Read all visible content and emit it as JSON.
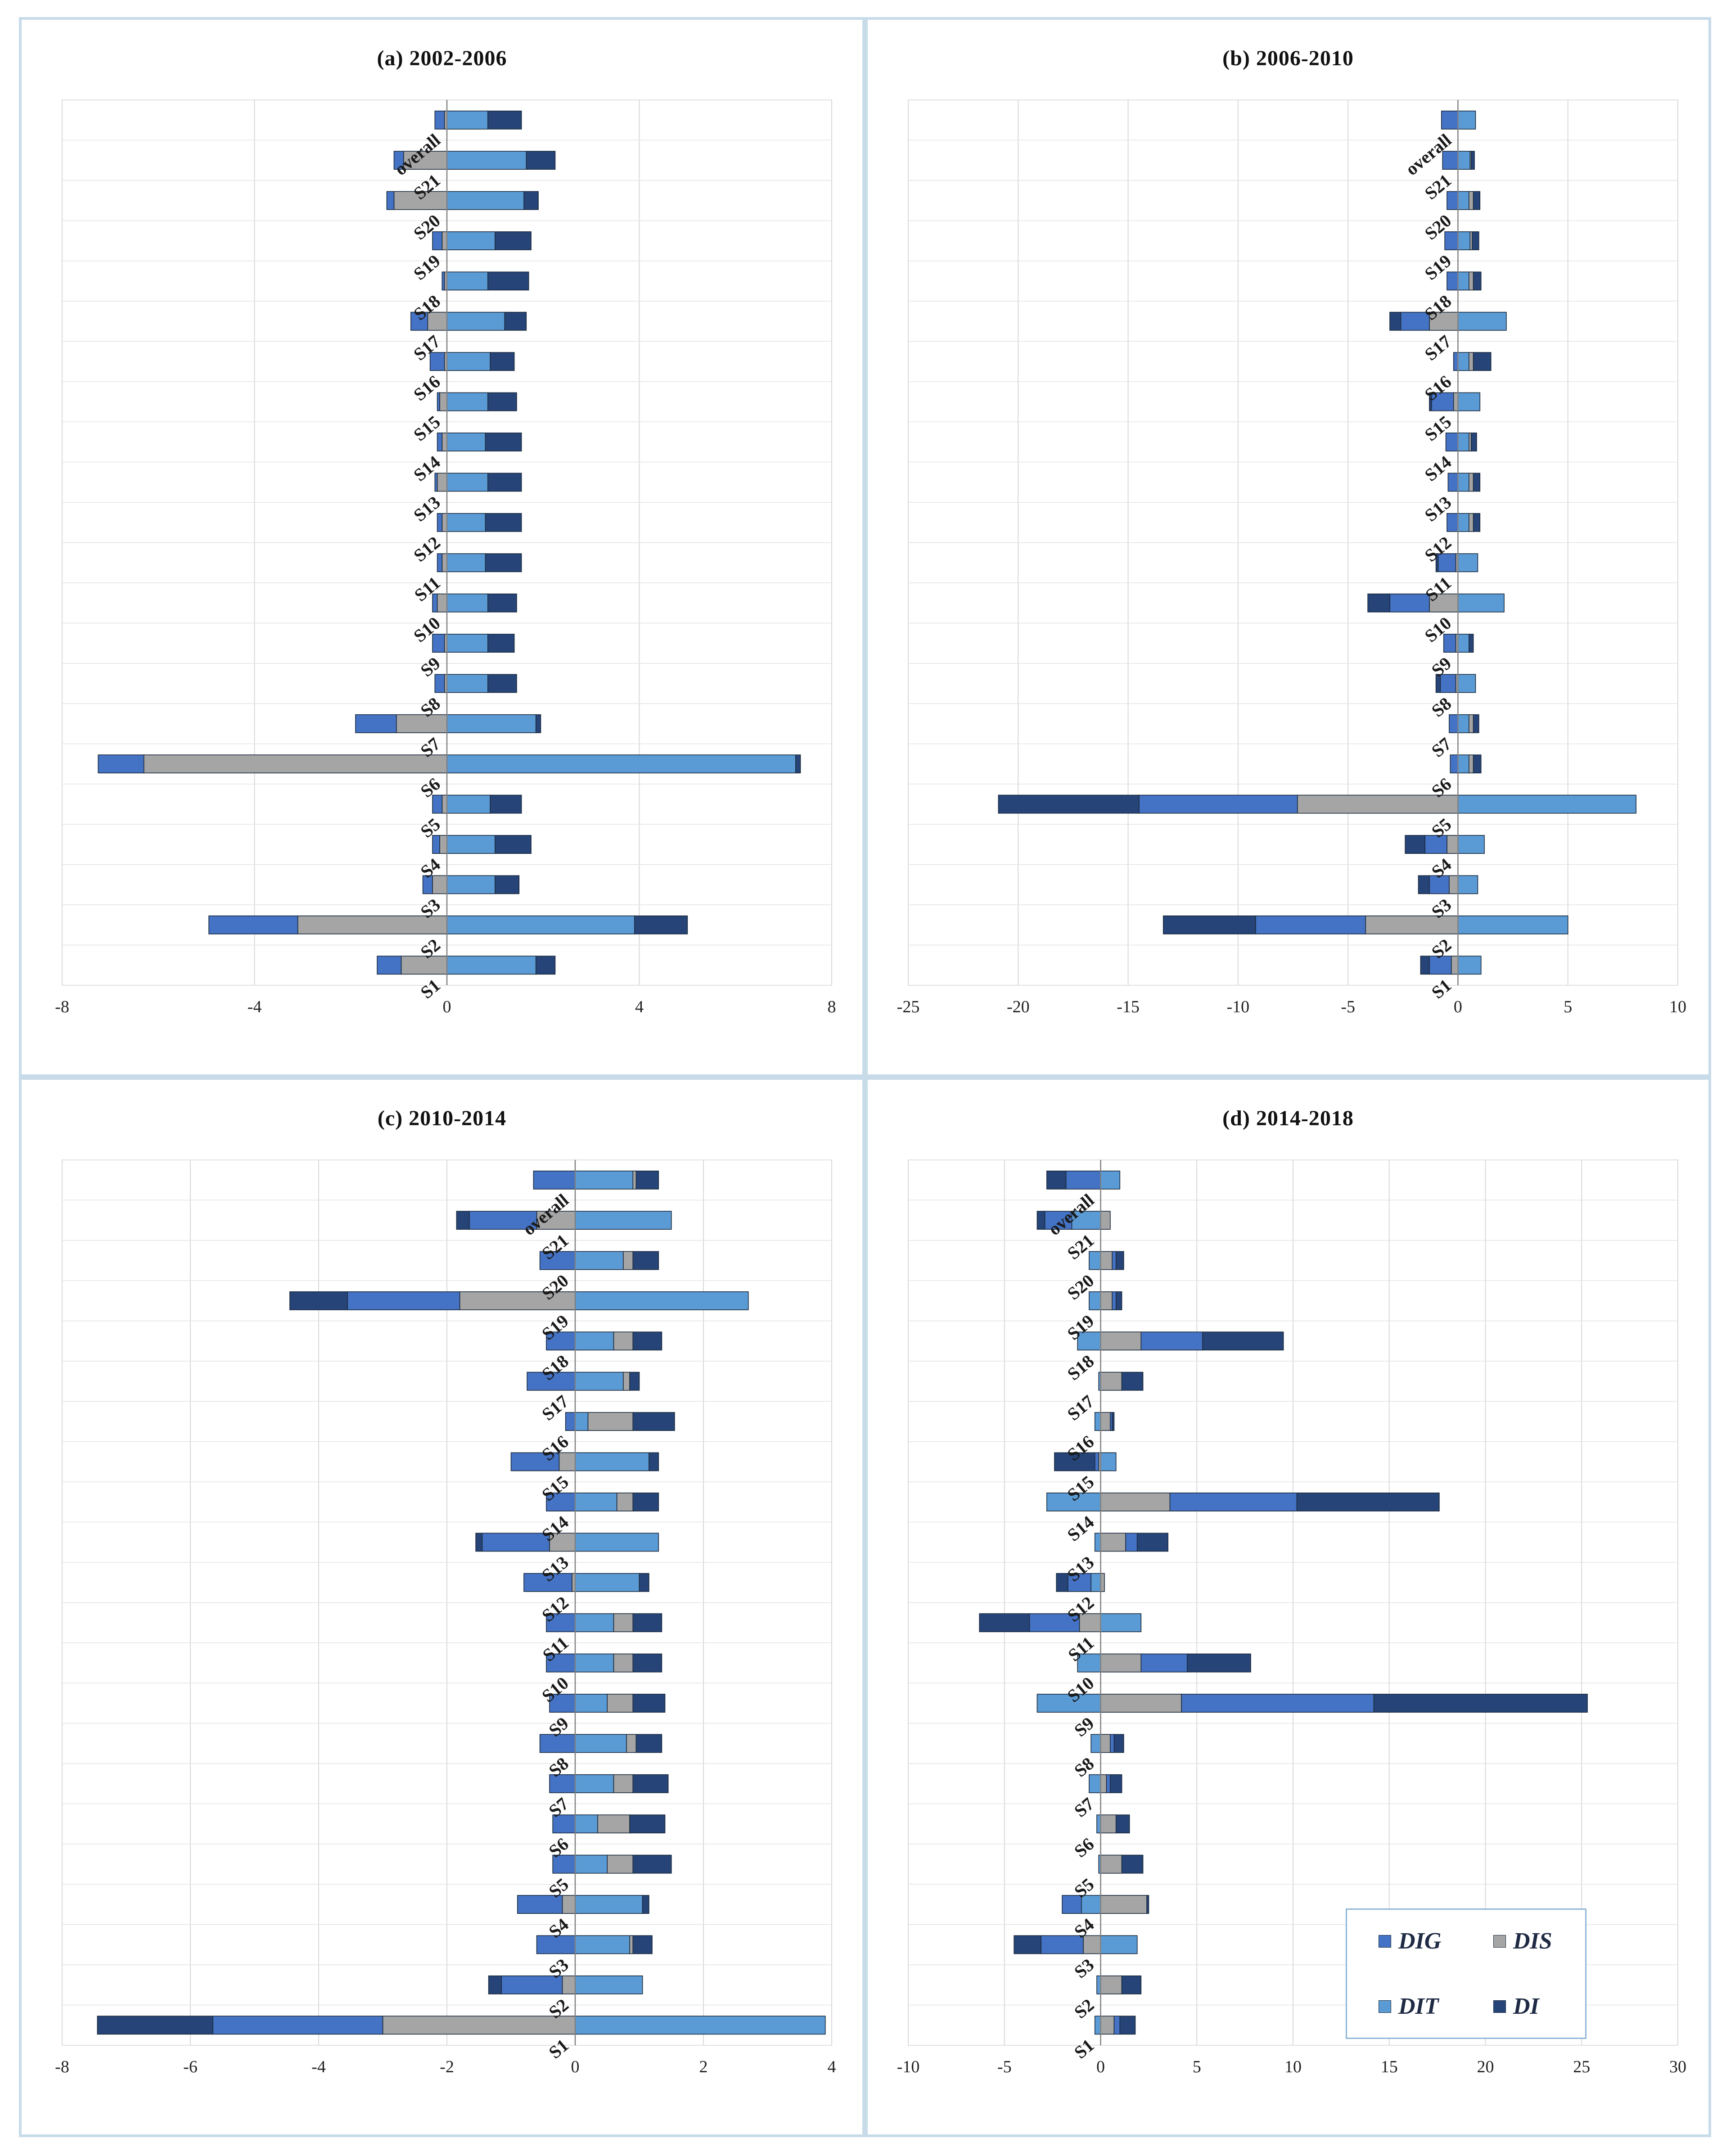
{
  "figure": {
    "legend": [
      {
        "key": "DIG",
        "label": "DIG",
        "color": "#4472C4"
      },
      {
        "key": "DIS",
        "label": "DIS",
        "color": "#A5A5A5"
      },
      {
        "key": "DIT",
        "label": "DIT",
        "color": "#5B9BD5"
      },
      {
        "key": "DI",
        "label": "DI",
        "color": "#264478"
      }
    ]
  },
  "chart_data": [
    {
      "type": "bar",
      "orientation": "horizontal",
      "stacked": "diverging",
      "title": "(a) 2002-2006",
      "categories": [
        "S1",
        "S2",
        "S3",
        "S4",
        "S5",
        "S6",
        "S7",
        "S8",
        "S9",
        "S10",
        "S11",
        "S12",
        "S13",
        "S14",
        "S15",
        "S16",
        "S17",
        "S18",
        "S19",
        "S20",
        "S21",
        "overall"
      ],
      "xlim": [
        -8,
        8
      ],
      "xticks": [
        "-8",
        "-4",
        "0",
        "4",
        "8"
      ],
      "xtick_values": [
        -8,
        -4,
        0,
        4,
        8
      ],
      "series": [
        {
          "name": "DIS",
          "values": [
            -0.95,
            -3.1,
            -0.3,
            -0.15,
            -0.1,
            -6.3,
            -1.05,
            -0.05,
            -0.05,
            -0.2,
            -0.1,
            -0.1,
            -0.2,
            -0.1,
            -0.15,
            -0.05,
            -0.4,
            -0.05,
            -0.1,
            -1.1,
            -0.9,
            -0.05
          ]
        },
        {
          "name": "DIG",
          "values": [
            -0.5,
            -1.85,
            -0.2,
            -0.15,
            -0.2,
            -0.95,
            -0.85,
            -0.2,
            -0.25,
            -0.1,
            -0.1,
            -0.1,
            -0.05,
            -0.1,
            -0.05,
            -0.3,
            -0.35,
            -0.05,
            -0.2,
            -0.15,
            -0.2,
            -0.2
          ]
        },
        {
          "name": "DI",
          "values": [
            0.4,
            1.1,
            0.5,
            0.75,
            0.65,
            0.1,
            0.1,
            0.6,
            0.55,
            0.6,
            0.75,
            0.75,
            0.7,
            0.75,
            0.6,
            0.5,
            0.45,
            0.85,
            0.75,
            0.3,
            0.6,
            0.7
          ]
        },
        {
          "name": "DIT",
          "values": [
            1.85,
            3.9,
            1.0,
            1.0,
            0.9,
            7.25,
            1.85,
            0.85,
            0.85,
            0.85,
            0.8,
            0.8,
            0.85,
            0.8,
            0.85,
            0.9,
            1.2,
            0.85,
            1.0,
            1.6,
            1.65,
            0.85
          ]
        }
      ],
      "stack_order": {
        "positive": [
          "DIT",
          "DIS",
          "DI"
        ],
        "negative": [
          "DIS",
          "DIG",
          "DI"
        ]
      }
    },
    {
      "type": "bar",
      "orientation": "horizontal",
      "stacked": "diverging",
      "title": "(b) 2006-2010",
      "categories": [
        "S1",
        "S2",
        "S3",
        "S4",
        "S5",
        "S6",
        "S7",
        "S8",
        "S9",
        "S10",
        "S11",
        "S12",
        "S13",
        "S14",
        "S15",
        "S16",
        "S17",
        "S18",
        "S19",
        "S20",
        "S21",
        "overall"
      ],
      "xlim": [
        -25,
        10
      ],
      "xticks": [
        "-25",
        "-20",
        "-15",
        "-10",
        "-5",
        "0",
        "5",
        "10"
      ],
      "xtick_values": [
        -25,
        -20,
        -15,
        -10,
        -5,
        0,
        5,
        10
      ],
      "series": [
        {
          "name": "DIS",
          "values": [
            -0.3,
            -4.2,
            -0.4,
            -0.5,
            -7.3,
            0.2,
            0.2,
            -0.1,
            -0.1,
            -1.3,
            -0.1,
            0.2,
            0.2,
            0.1,
            -0.2,
            0.2,
            -1.3,
            0.2,
            0.1,
            0.2,
            0.05,
            0.0
          ]
        },
        {
          "name": "DIG",
          "values": [
            -1.0,
            -5.0,
            -0.9,
            -1.0,
            -7.2,
            -0.35,
            -0.4,
            -0.7,
            -0.55,
            -1.8,
            -0.8,
            -0.5,
            -0.45,
            -0.55,
            -1.0,
            -0.2,
            -1.3,
            -0.5,
            -0.6,
            -0.5,
            -0.7,
            -0.75
          ]
        },
        {
          "name": "DI",
          "values": [
            -0.4,
            -4.2,
            -0.5,
            -0.9,
            -6.4,
            0.35,
            0.25,
            -0.2,
            0.2,
            -1.0,
            -0.1,
            0.3,
            0.3,
            0.25,
            -0.1,
            0.8,
            -0.5,
            0.35,
            0.3,
            0.3,
            0.15,
            0.0
          ]
        },
        {
          "name": "DIT",
          "values": [
            1.05,
            5.0,
            0.9,
            1.2,
            8.1,
            0.5,
            0.5,
            0.8,
            0.5,
            2.1,
            0.9,
            0.5,
            0.5,
            0.5,
            1.0,
            0.5,
            2.2,
            0.5,
            0.55,
            0.5,
            0.55,
            0.8
          ]
        }
      ],
      "stack_order": {
        "positive": [
          "DIT",
          "DIS",
          "DI"
        ],
        "negative": [
          "DIS",
          "DIG",
          "DI"
        ]
      }
    },
    {
      "type": "bar",
      "orientation": "horizontal",
      "stacked": "diverging",
      "title": "(c) 2010-2014",
      "categories": [
        "S1",
        "S2",
        "S3",
        "S4",
        "S5",
        "S6",
        "S7",
        "S8",
        "S9",
        "S10",
        "S11",
        "S12",
        "S13",
        "S14",
        "S15",
        "S16",
        "S17",
        "S18",
        "S19",
        "S20",
        "S21",
        "overall"
      ],
      "xlim": [
        -8,
        4
      ],
      "xticks": [
        "-8",
        "-6",
        "-4",
        "-2",
        "0",
        "2",
        "4"
      ],
      "xtick_values": [
        -8,
        -6,
        -4,
        -2,
        0,
        2,
        4
      ],
      "series": [
        {
          "name": "DIS",
          "values": [
            -3.0,
            -0.2,
            0.05,
            -0.2,
            0.4,
            0.5,
            0.3,
            0.15,
            0.4,
            0.3,
            0.3,
            -0.05,
            -0.4,
            0.25,
            -0.25,
            0.7,
            0.1,
            0.3,
            -1.8,
            0.15,
            -0.6,
            0.05
          ]
        },
        {
          "name": "DIG",
          "values": [
            -2.65,
            -0.95,
            -0.6,
            -0.7,
            -0.35,
            -0.35,
            -0.4,
            -0.55,
            -0.4,
            -0.45,
            -0.45,
            -0.75,
            -1.05,
            -0.45,
            -0.75,
            -0.15,
            -0.75,
            -0.45,
            -1.75,
            -0.55,
            -1.05,
            -0.65
          ]
        },
        {
          "name": "DI",
          "values": [
            -1.8,
            -0.2,
            0.3,
            0.1,
            0.6,
            0.55,
            0.55,
            0.4,
            0.5,
            0.45,
            0.45,
            0.15,
            -0.1,
            0.4,
            0.15,
            0.65,
            0.15,
            0.45,
            -0.9,
            0.4,
            -0.2,
            0.35
          ]
        },
        {
          "name": "DIT",
          "values": [
            3.9,
            1.05,
            0.85,
            1.05,
            0.5,
            0.35,
            0.6,
            0.8,
            0.5,
            0.6,
            0.6,
            1.0,
            1.3,
            0.65,
            1.15,
            0.2,
            0.75,
            0.6,
            2.7,
            0.75,
            1.5,
            0.9
          ]
        }
      ],
      "stack_order": {
        "positive": [
          "DIT",
          "DIS",
          "DI"
        ],
        "negative": [
          "DIS",
          "DIG",
          "DI"
        ]
      }
    },
    {
      "type": "bar",
      "orientation": "horizontal",
      "stacked": "diverging",
      "title": "(d) 2014-2018",
      "categories": [
        "S1",
        "S2",
        "S3",
        "S4",
        "S5",
        "S6",
        "S7",
        "S8",
        "S9",
        "S10",
        "S11",
        "S12",
        "S13",
        "S14",
        "S15",
        "S16",
        "S17",
        "S18",
        "S19",
        "S20",
        "S21",
        "overall"
      ],
      "xlim": [
        -10,
        30
      ],
      "xticks": [
        "-10",
        "-5",
        "0",
        "5",
        "10",
        "15",
        "20",
        "25",
        "30"
      ],
      "xtick_values": [
        -10,
        -5,
        0,
        5,
        10,
        15,
        20,
        25,
        30
      ],
      "series": [
        {
          "name": "DIS",
          "values": [
            0.7,
            1.1,
            -0.9,
            2.4,
            1.1,
            0.8,
            0.3,
            0.5,
            4.2,
            2.1,
            -1.1,
            0.2,
            1.3,
            3.6,
            -0.1,
            0.5,
            1.1,
            2.1,
            0.6,
            0.6,
            0.5,
            0.0
          ]
        },
        {
          "name": "DIG",
          "values": [
            0.3,
            0.0,
            -2.2,
            -1.0,
            0.0,
            0.0,
            0.2,
            0.2,
            10.0,
            2.4,
            -2.6,
            -1.2,
            0.6,
            6.6,
            -0.2,
            0.1,
            0.0,
            3.2,
            0.2,
            0.2,
            -1.4,
            -1.8
          ]
        },
        {
          "name": "DI",
          "values": [
            0.8,
            1.0,
            -1.4,
            0.1,
            1.1,
            0.7,
            0.6,
            0.5,
            11.1,
            3.3,
            -2.6,
            -0.6,
            1.6,
            7.4,
            -2.1,
            0.1,
            1.1,
            4.2,
            0.3,
            0.4,
            -0.4,
            -1.0
          ]
        },
        {
          "name": "DIT",
          "values": [
            -0.3,
            -0.2,
            1.9,
            -1.0,
            -0.1,
            -0.2,
            -0.6,
            -0.5,
            -3.3,
            -1.2,
            2.1,
            -0.5,
            -0.3,
            -2.8,
            0.8,
            -0.3,
            -0.1,
            -1.2,
            -0.6,
            -0.6,
            -1.5,
            1.0
          ]
        }
      ],
      "stack_order": {
        "positive": [
          "DIT",
          "DIS",
          "DI"
        ],
        "negative": [
          "DIS",
          "DIG",
          "DI"
        ]
      }
    }
  ]
}
